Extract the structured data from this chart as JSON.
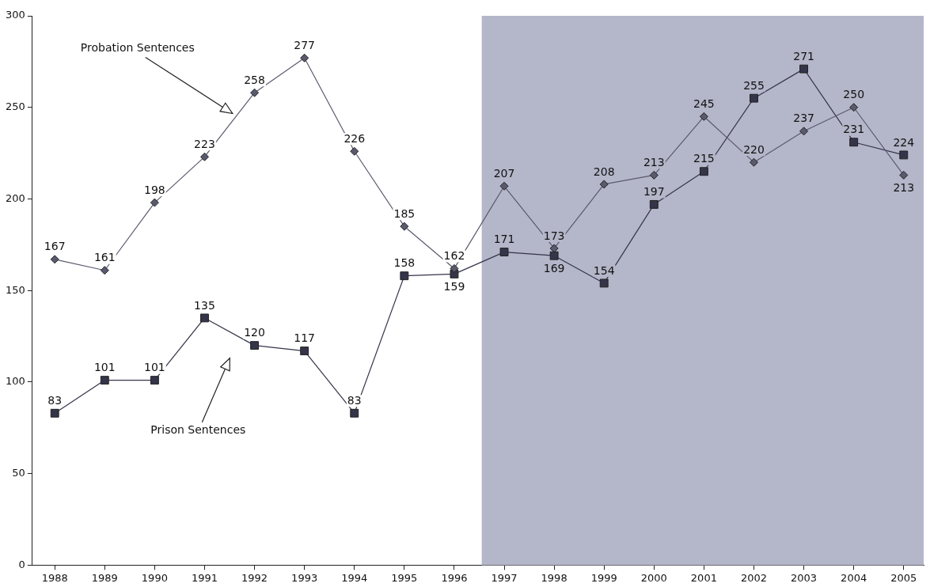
{
  "chart_data": {
    "type": "line",
    "x": [
      1988,
      1989,
      1990,
      1991,
      1992,
      1993,
      1994,
      1995,
      1996,
      1997,
      1998,
      1999,
      2000,
      2001,
      2002,
      2003,
      2004,
      2005
    ],
    "series": [
      {
        "color": "#5a5a6e",
        "marker": "diamond",
        "values": [
          167,
          161,
          198,
          223,
          258,
          277,
          226,
          185,
          162,
          207,
          173,
          208,
          213,
          245,
          220,
          237,
          250,
          213
        ]
      },
      {
        "color": "#34344a",
        "marker": "square",
        "values": [
          83,
          101,
          101,
          135,
          120,
          117,
          83,
          158,
          159,
          171,
          169,
          154,
          197,
          215,
          255,
          271,
          231,
          224
        ]
      }
    ],
    "xlim": [
      1987.55,
      2005.4
    ],
    "xticks": [
      1988,
      1989,
      1990,
      1991,
      1992,
      1993,
      1994,
      1995,
      1996,
      1997,
      1998,
      1999,
      2000,
      2001,
      2002,
      2003,
      2004,
      2005
    ],
    "ylim": [
      0,
      300
    ],
    "yticks": [
      0,
      50,
      100,
      150,
      200,
      250,
      300
    ],
    "bands": [
      {
        "axis": "x",
        "from": 1996.55,
        "to": 2005.4,
        "color": "#b4b6c9"
      }
    ],
    "annotations": [
      "Probation Sentences",
      "Prison Sentences"
    ],
    "data_labels": true,
    "grid": false,
    "legend": false,
    "line_style": "solid"
  }
}
